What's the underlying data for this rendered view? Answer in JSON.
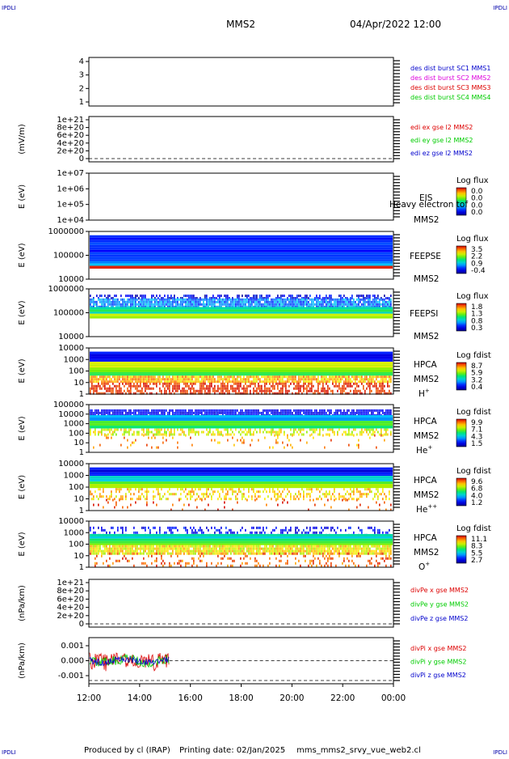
{
  "header": {
    "corner_tl": "IPDLI",
    "corner_tr": "IPDLI",
    "corner_bl": "IPDLI",
    "corner_br": "IPDLI",
    "spacecraft": "MMS2",
    "datetime": "04/Apr/2022 12:00"
  },
  "footer": {
    "produced_by": "Produced by cl (IRAP)",
    "printing_date": "Printing date: 02/Jan/2025",
    "filename": "mms_mms2_srvy_vue_web2.cl"
  },
  "colors": {
    "red": "#dd0000",
    "green": "#00cc00",
    "blue": "#0000cc",
    "magenta": "#dd00dd"
  },
  "chart_data": [
    {
      "id": "p1",
      "type": "scatter",
      "yticks": [
        "1",
        "2",
        "3",
        "4"
      ],
      "ylabel": "",
      "legend": [
        {
          "text": "des dist burst SC1 MMS1",
          "color": "#0000cc"
        },
        {
          "text": "des dist burst SC2 MMS2",
          "color": "#dd00dd"
        },
        {
          "text": "des dist burst SC3 MMS3",
          "color": "#dd0000"
        },
        {
          "text": "des dist burst SC4 MMS4",
          "color": "#00cc00"
        }
      ]
    },
    {
      "id": "p2",
      "type": "line",
      "yticks": [
        "0",
        "2e+20",
        "4e+20",
        "6e+20",
        "8e+20",
        "1e+21"
      ],
      "ylabel": "(mV/m)",
      "legend": [
        {
          "text": "edi ex gse l2 MMS2",
          "color": "#dd0000"
        },
        {
          "text": "edi ey gse l2 MMS2",
          "color": "#00cc00"
        },
        {
          "text": "edi ez gse l2 MMS2",
          "color": "#0000cc"
        }
      ]
    },
    {
      "id": "p3",
      "type": "heatmap",
      "yticks": [
        "1e+04",
        "1e+05",
        "1e+06",
        "1e+07"
      ],
      "ylabel": "E (eV)",
      "instrument": [
        "EIS",
        "MMS2"
      ],
      "overlay": "Heavy electron tof",
      "cbar_title": "Log flux",
      "cbar_ticks": [
        "0.0",
        "0.0",
        "0.0",
        "0.0"
      ]
    },
    {
      "id": "p4",
      "type": "heatmap",
      "yticks": [
        "10000",
        "100000",
        "1000000"
      ],
      "ylabel": "E (eV)",
      "instrument": [
        "FEEPSE",
        "MMS2"
      ],
      "cbar_title": "Log flux",
      "cbar_ticks": [
        "3.5",
        "2.2",
        "0.9",
        "-0.4"
      ]
    },
    {
      "id": "p5",
      "type": "heatmap",
      "yticks": [
        "10000",
        "100000",
        "1000000"
      ],
      "ylabel": "E (eV)",
      "instrument": [
        "FEEPSI",
        "MMS2"
      ],
      "cbar_title": "Log flux",
      "cbar_ticks": [
        "1.8",
        "1.3",
        "0.8",
        "0.3"
      ]
    },
    {
      "id": "p6",
      "type": "heatmap",
      "yticks": [
        "1",
        "10",
        "100",
        "1000",
        "10000"
      ],
      "ylabel": "E (eV)",
      "instrument": [
        "HPCA",
        "MMS2"
      ],
      "species": "H",
      "species_sup": "+",
      "cbar_title": "Log fdist",
      "cbar_ticks": [
        "8.7",
        "5.9",
        "3.2",
        "0.4"
      ]
    },
    {
      "id": "p7",
      "type": "heatmap",
      "yticks": [
        "1",
        "10",
        "100",
        "1000",
        "10000",
        "100000"
      ],
      "ylabel": "E (eV)",
      "instrument": [
        "HPCA",
        "MMS2"
      ],
      "species": "He",
      "species_sup": "+",
      "cbar_title": "Log fdist",
      "cbar_ticks": [
        "9.9",
        "7.1",
        "4.3",
        "1.5"
      ]
    },
    {
      "id": "p8",
      "type": "heatmap",
      "yticks": [
        "1",
        "10",
        "100",
        "1000",
        "10000"
      ],
      "ylabel": "E (eV)",
      "instrument": [
        "HPCA",
        "MMS2"
      ],
      "species": "He",
      "species_sup": "++",
      "cbar_title": "Log fdist",
      "cbar_ticks": [
        "9.6",
        "6.8",
        "4.0",
        "1.2"
      ]
    },
    {
      "id": "p9",
      "type": "heatmap",
      "yticks": [
        "1",
        "10",
        "100",
        "1000",
        "10000"
      ],
      "ylabel": "E (eV)",
      "instrument": [
        "HPCA",
        "MMS2"
      ],
      "species": "O",
      "species_sup": "+",
      "cbar_title": "Log fdist",
      "cbar_ticks": [
        "11.1",
        "8.3",
        "5.5",
        "2.7"
      ]
    },
    {
      "id": "p10",
      "type": "line",
      "yticks": [
        "0",
        "2e+20",
        "4e+20",
        "6e+20",
        "8e+20",
        "1e+21"
      ],
      "ylabel": "(nPa/km)",
      "legend": [
        {
          "text": "divPe x gse MMS2",
          "color": "#dd0000"
        },
        {
          "text": "divPe y gse MMS2",
          "color": "#00cc00"
        },
        {
          "text": "divPe z gse MMS2",
          "color": "#0000cc"
        }
      ]
    },
    {
      "id": "p11",
      "type": "line",
      "yticks": [
        "-0.001",
        "0.000",
        "0.001"
      ],
      "ylabel": "(nPa/km)",
      "ylim": [
        -0.0015,
        0.0015
      ],
      "data_end": "15:10",
      "legend": [
        {
          "text": "divPi x gse MMS2",
          "color": "#dd0000"
        },
        {
          "text": "divPi y gse MMS2",
          "color": "#00cc00"
        },
        {
          "text": "divPi z gse MMS2",
          "color": "#0000cc"
        }
      ]
    }
  ],
  "xaxis": {
    "ticks": [
      "12:00",
      "14:00",
      "16:00",
      "18:00",
      "20:00",
      "22:00",
      "00:00"
    ]
  }
}
